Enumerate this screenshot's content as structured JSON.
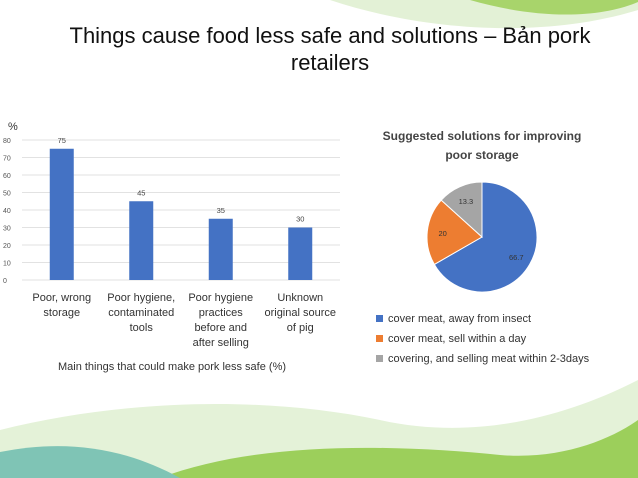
{
  "slide": {
    "title": "Things cause food less safe and solutions – Bản pork retailers",
    "colors": {
      "bar": "#4472C4",
      "pie": [
        "#4472C4",
        "#ED7D31",
        "#A5A5A5"
      ],
      "wave_green": "#8cc63f",
      "wave_light": "#d6ecc1"
    }
  },
  "chart_data": [
    {
      "type": "bar",
      "unit_label": "%",
      "xlabel": "Main things that could make pork less safe (%)",
      "ylabel": "",
      "ylim": [
        0,
        80
      ],
      "yticks": [
        0,
        10,
        20,
        30,
        40,
        50,
        60,
        70,
        80
      ],
      "categories": [
        [
          "Poor, wrong",
          "storage"
        ],
        [
          "Poor hygiene,",
          "contaminated",
          "tools"
        ],
        [
          "Poor hygiene",
          "practices",
          "before and",
          "after selling"
        ],
        [
          "Unknown",
          "original source",
          "of pig"
        ]
      ],
      "values": [
        75,
        45,
        35,
        30
      ],
      "grid": true,
      "legend": "none"
    },
    {
      "type": "pie",
      "title": "Suggested solutions for improving poor storage",
      "slices": [
        {
          "label": "cover meat, away from insect",
          "value": 66.7
        },
        {
          "label": "cover meat, sell within a day",
          "value": 20
        },
        {
          "label": "covering, and selling meat within 2-3days",
          "value": 13.3
        }
      ],
      "legend": "bottom"
    }
  ]
}
